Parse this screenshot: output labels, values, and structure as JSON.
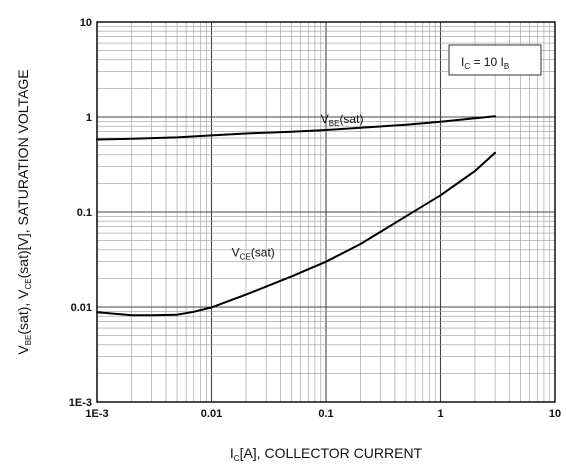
{
  "chart_data": {
    "type": "line",
    "scale": {
      "x": "log",
      "y": "log"
    },
    "xlim": [
      0.001,
      10
    ],
    "ylim": [
      0.001,
      10
    ],
    "grid": true,
    "x_ticks": [
      {
        "value": 0.001,
        "label": "1E-3"
      },
      {
        "value": 0.01,
        "label": "0.01"
      },
      {
        "value": 0.1,
        "label": "0.1"
      },
      {
        "value": 1,
        "label": "1"
      },
      {
        "value": 10,
        "label": "10"
      }
    ],
    "y_ticks": [
      {
        "value": 0.001,
        "label": "1E-3"
      },
      {
        "value": 0.01,
        "label": "0.01"
      },
      {
        "value": 0.1,
        "label": "0.1"
      },
      {
        "value": 1,
        "label": "1"
      },
      {
        "value": 10,
        "label": "10"
      }
    ],
    "xlabel": {
      "pre": "I",
      "sub": "C",
      "post": "[A], COLLECTOR CURRENT"
    },
    "ylabel": {
      "p1": "V",
      "s1": "BE",
      "p2": "(sat), V",
      "s2": "CE",
      "p3": "(sat)[V], SATURATION VOLTAGE"
    },
    "condition": {
      "a": "I",
      "as": "C",
      "mid": " = 10 I",
      "bs": "B"
    },
    "series": [
      {
        "name_main": "V",
        "name_sub": "BE",
        "name_post": "(sat)",
        "label_at": [
          0.09,
          0.86
        ],
        "x": [
          0.001,
          0.002,
          0.005,
          0.01,
          0.02,
          0.05,
          0.1,
          0.2,
          0.5,
          1,
          2,
          3
        ],
        "y": [
          0.58,
          0.59,
          0.61,
          0.64,
          0.67,
          0.7,
          0.73,
          0.77,
          0.83,
          0.89,
          0.97,
          1.02
        ]
      },
      {
        "name_main": "V",
        "name_sub": "CE",
        "name_post": "(sat)",
        "label_at": [
          0.015,
          0.034
        ],
        "x": [
          0.001,
          0.002,
          0.003,
          0.005,
          0.007,
          0.01,
          0.02,
          0.05,
          0.1,
          0.2,
          0.5,
          1,
          2,
          3
        ],
        "y": [
          0.0088,
          0.0082,
          0.0082,
          0.0083,
          0.0089,
          0.0099,
          0.0135,
          0.021,
          0.03,
          0.046,
          0.09,
          0.15,
          0.27,
          0.42
        ]
      }
    ]
  }
}
